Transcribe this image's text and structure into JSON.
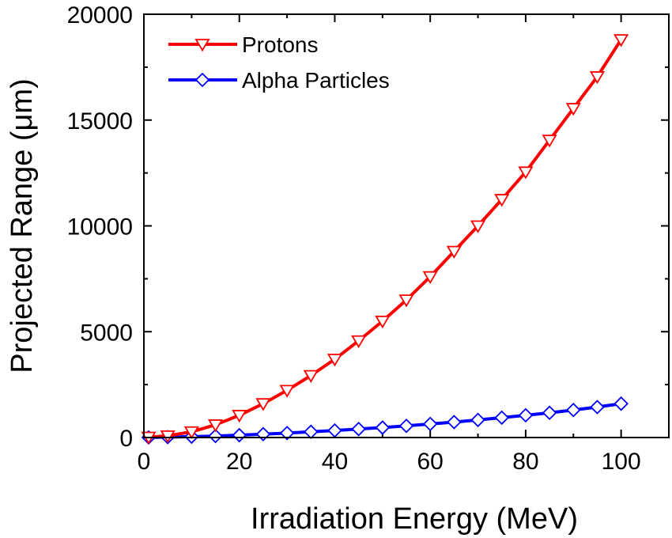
{
  "chart_data": {
    "type": "line",
    "xlabel": "Irradiation Energy (MeV)",
    "ylabel": "Projected Range (μm)",
    "xlim": [
      0,
      110
    ],
    "ylim": [
      0,
      20000
    ],
    "xticks": [
      0,
      20,
      40,
      60,
      80,
      100
    ],
    "yticks": [
      0,
      5000,
      10000,
      15000,
      20000
    ],
    "xtick_labels": [
      "0",
      "20",
      "40",
      "60",
      "80",
      "100"
    ],
    "ytick_labels": [
      "0",
      "5000",
      "10000",
      "15000",
      "20000"
    ],
    "grid": false,
    "legend_position": "top-left",
    "series": [
      {
        "name": "Protons",
        "color": "#ff0000",
        "marker": "triangle-down-open",
        "x": [
          1,
          5,
          10,
          15,
          20,
          25,
          30,
          35,
          40,
          45,
          50,
          55,
          60,
          65,
          70,
          75,
          80,
          85,
          90,
          95,
          100
        ],
        "y": [
          20,
          80,
          270,
          600,
          1050,
          1600,
          2230,
          2930,
          3700,
          4570,
          5500,
          6500,
          7600,
          8800,
          10000,
          11250,
          12550,
          14050,
          15550,
          17050,
          18800
        ]
      },
      {
        "name": "Alpha Particles",
        "color": "#0000ff",
        "marker": "diamond-open",
        "x": [
          1,
          5,
          10,
          15,
          20,
          25,
          30,
          35,
          40,
          45,
          50,
          55,
          60,
          65,
          70,
          75,
          80,
          85,
          90,
          95,
          100
        ],
        "y": [
          5,
          20,
          40,
          70,
          110,
          160,
          210,
          270,
          330,
          400,
          470,
          550,
          640,
          730,
          830,
          940,
          1050,
          1170,
          1300,
          1440,
          1600
        ]
      }
    ]
  }
}
